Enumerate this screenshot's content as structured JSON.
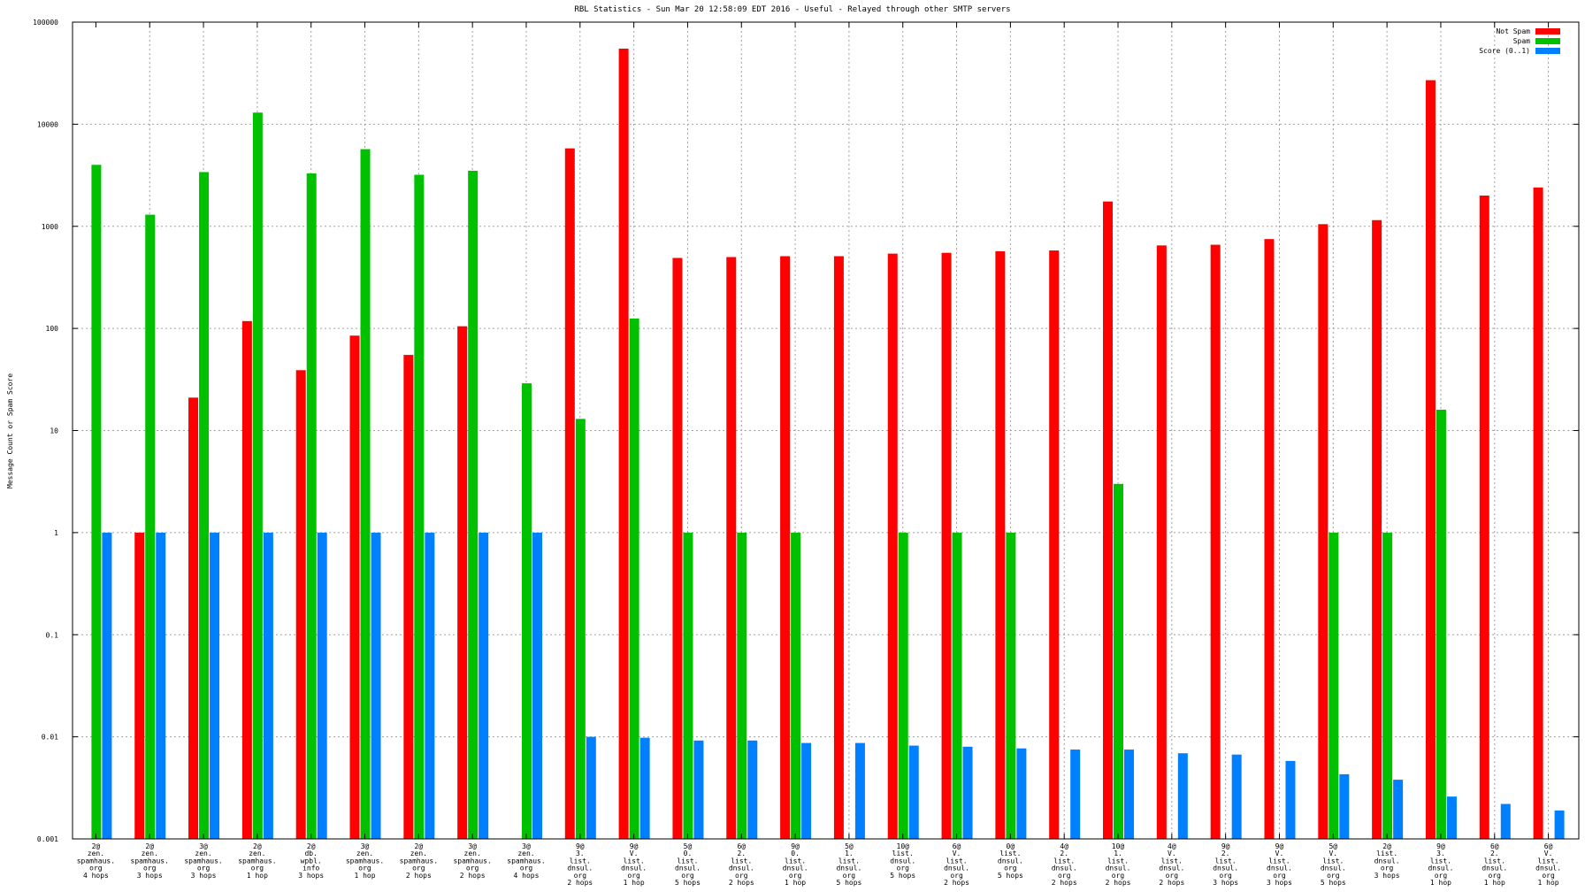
{
  "chart_data": {
    "type": "bar",
    "title": "RBL Statistics - Sun Mar 20 12:58:09 EDT 2016 - Useful - Relayed through other SMTP servers",
    "ylabel": "Message Count or Spam Score",
    "xlabel": "",
    "yscale": "log",
    "ylim": [
      0.001,
      100000
    ],
    "yticks": [
      "100000",
      "10000",
      "1000",
      "100",
      "10",
      "1",
      "0.1",
      "0.01",
      "0.001"
    ],
    "grid": true,
    "legend_position": "top-right",
    "categories": [
      [
        "2@",
        "zen.",
        "spamhaus.",
        "org",
        "4 hops"
      ],
      [
        "2@",
        "zen.",
        "spamhaus.",
        "org",
        "3 hops"
      ],
      [
        "3@",
        "zen.",
        "spamhaus.",
        "org",
        "3 hops"
      ],
      [
        "2@",
        "zen.",
        "spamhaus.",
        "org",
        "1 hop"
      ],
      [
        "2@",
        "db.",
        "wpbl.",
        "info",
        "3 hops"
      ],
      [
        "3@",
        "zen.",
        "spamhaus.",
        "org",
        "1 hop"
      ],
      [
        "2@",
        "zen.",
        "spamhaus.",
        "org",
        "2 hops"
      ],
      [
        "3@",
        "zen.",
        "spamhaus.",
        "org",
        "2 hops"
      ],
      [
        "3@",
        "zen.",
        "spamhaus.",
        "org",
        "4 hops"
      ],
      [
        "9@",
        "3.",
        "list.",
        "dnsul.",
        "org",
        "2 hops"
      ],
      [
        "9@",
        "V.",
        "list.",
        "dnsul.",
        "org",
        "1 hop"
      ],
      [
        "5@",
        "0.",
        "list.",
        "dnsul.",
        "org",
        "5 hops"
      ],
      [
        "6@",
        "2.",
        "list.",
        "dnsul.",
        "org",
        "2 hops"
      ],
      [
        "9@",
        "0.",
        "list.",
        "dnsul.",
        "org",
        "1 hop"
      ],
      [
        "5@",
        "1.",
        "list.",
        "dnsul.",
        "org",
        "5 hops"
      ],
      [
        "10@",
        "list.",
        "dnsul.",
        "org",
        "5 hops"
      ],
      [
        "6@",
        "V.",
        "list.",
        "dnsul.",
        "org",
        "2 hops"
      ],
      [
        "0@",
        "list.",
        "dnsul.",
        "org",
        "5 hops"
      ],
      [
        "4@",
        "2.",
        "list.",
        "dnsul.",
        "org",
        "2 hops"
      ],
      [
        "10@",
        "1.",
        "list.",
        "dnsul.",
        "org",
        "2 hops"
      ],
      [
        "4@",
        "V.",
        "list.",
        "dnsul.",
        "org",
        "2 hops"
      ],
      [
        "9@",
        "2.",
        "list.",
        "dnsul.",
        "org",
        "3 hops"
      ],
      [
        "9@",
        "V.",
        "list.",
        "dnsul.",
        "org",
        "3 hops"
      ],
      [
        "5@",
        "V.",
        "list.",
        "dnsul.",
        "org",
        "5 hops"
      ],
      [
        "2@",
        "list.",
        "dnsul.",
        "org",
        "3 hops"
      ],
      [
        "9@",
        "3.",
        "list.",
        "dnsul.",
        "org",
        "1 hop"
      ],
      [
        "6@",
        "2.",
        "list.",
        "dnsul.",
        "org",
        "1 hop"
      ],
      [
        "6@",
        "V.",
        "list.",
        "dnsul.",
        "org",
        "1 hop"
      ]
    ],
    "series": [
      {
        "name": "Not Spam",
        "color": "#ff0000",
        "values": [
          null,
          1,
          21,
          118,
          39,
          85,
          55,
          105,
          null,
          5800,
          55000,
          490,
          500,
          510,
          510,
          540,
          550,
          570,
          580,
          1750,
          650,
          660,
          750,
          1050,
          1150,
          27000,
          2000,
          2400
        ]
      },
      {
        "name": "Spam",
        "color": "#00c000",
        "values": [
          4000,
          1300,
          3400,
          13000,
          3300,
          5700,
          3200,
          3500,
          29,
          13,
          125,
          1,
          1,
          1,
          null,
          1,
          1,
          1,
          null,
          3,
          null,
          null,
          null,
          1,
          1,
          16,
          null,
          null
        ]
      },
      {
        "name": "Score (0..1)",
        "color": "#0080ff",
        "values": [
          1,
          1,
          1,
          1,
          1,
          1,
          1,
          1,
          1,
          0.01,
          0.0098,
          0.0092,
          0.0092,
          0.0087,
          0.0087,
          0.0082,
          0.008,
          0.0077,
          0.0075,
          0.0075,
          0.0069,
          0.0067,
          0.0058,
          0.0043,
          0.0038,
          0.0026,
          0.0022,
          0.0019
        ]
      }
    ]
  }
}
